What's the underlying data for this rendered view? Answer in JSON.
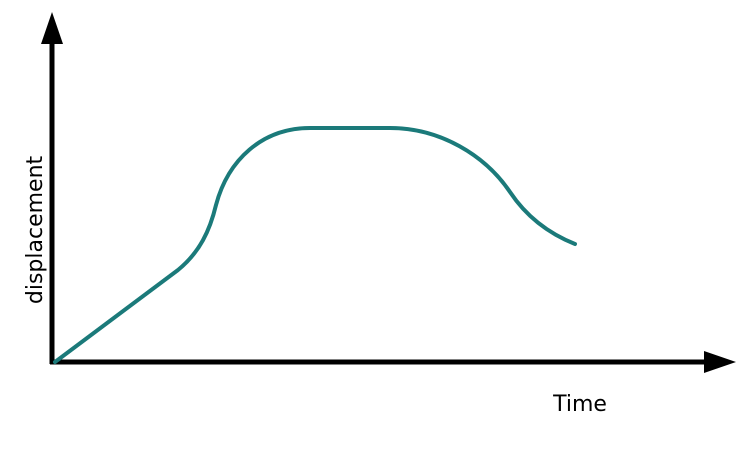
{
  "axes": {
    "y_label": "displacement",
    "x_label": "Time"
  }
}
